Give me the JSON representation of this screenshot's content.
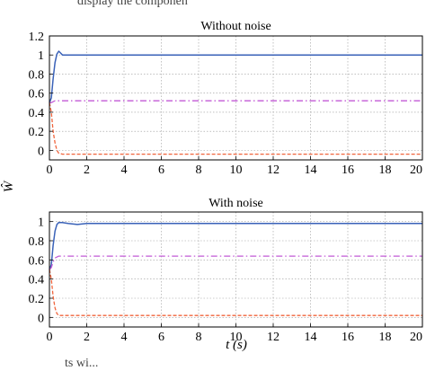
{
  "top_text": "display the componen",
  "bottom_text": "ts wi...",
  "shared_ylabel": "Ŵ",
  "shared_xlabel": "t (s)",
  "colors": {
    "blue": "#3a62b8",
    "magenta": "#c25ad6",
    "orange": "#f0643c",
    "grid": "#9a9a9a"
  },
  "chart_data": [
    {
      "type": "line",
      "title": "Without noise",
      "xlim": [
        0,
        20
      ],
      "ylim": [
        -0.1,
        1.2
      ],
      "x_ticks": [
        0,
        2,
        4,
        6,
        8,
        10,
        12,
        14,
        16,
        18,
        20
      ],
      "y_ticks": [
        0,
        0.2,
        0.4,
        0.6,
        0.8,
        1,
        1.2
      ],
      "y_tick_labels": [
        "0",
        "0.2",
        "0.4",
        "0.6",
        "0.8",
        "1",
        "1.2"
      ],
      "grid": true,
      "series": [
        {
          "style": "solid",
          "color": "blue",
          "x": [
            0,
            0.1,
            0.2,
            0.3,
            0.4,
            0.5,
            0.6,
            0.7,
            0.8,
            1,
            2,
            20
          ],
          "y": [
            0.5,
            0.55,
            0.75,
            0.92,
            1.01,
            1.04,
            1.02,
            1.0,
            1.0,
            1.0,
            1.0,
            1.0
          ]
        },
        {
          "style": "dashdot",
          "color": "magenta",
          "x": [
            0,
            0.1,
            0.2,
            0.3,
            0.5,
            1,
            20
          ],
          "y": [
            0.5,
            0.5,
            0.51,
            0.52,
            0.52,
            0.52,
            0.52
          ]
        },
        {
          "style": "dashed",
          "color": "orange",
          "x": [
            0,
            0.1,
            0.2,
            0.3,
            0.4,
            0.5,
            0.7,
            1,
            20
          ],
          "y": [
            0.5,
            0.4,
            0.2,
            0.08,
            0.0,
            -0.03,
            -0.04,
            -0.04,
            -0.04
          ]
        }
      ]
    },
    {
      "type": "line",
      "title": "With noise",
      "xlim": [
        0,
        20
      ],
      "ylim": [
        -0.1,
        1.1
      ],
      "x_ticks": [
        0,
        2,
        4,
        6,
        8,
        10,
        12,
        14,
        16,
        18,
        20
      ],
      "y_ticks": [
        0,
        0.2,
        0.4,
        0.6,
        0.8,
        1
      ],
      "y_tick_labels": [
        "0",
        "0.2",
        "0.4",
        "0.6",
        "0.8",
        "1"
      ],
      "grid": true,
      "series": [
        {
          "style": "solid",
          "color": "blue",
          "x": [
            0,
            0.1,
            0.2,
            0.3,
            0.4,
            0.5,
            0.7,
            1,
            1.5,
            2,
            2.5,
            20
          ],
          "y": [
            0.5,
            0.55,
            0.75,
            0.9,
            0.97,
            0.99,
            0.99,
            0.98,
            0.97,
            0.98,
            0.98,
            0.98
          ]
        },
        {
          "style": "dashdot",
          "color": "magenta",
          "x": [
            0,
            0.1,
            0.2,
            0.3,
            0.5,
            1,
            20
          ],
          "y": [
            0.5,
            0.52,
            0.58,
            0.62,
            0.64,
            0.64,
            0.64
          ]
        },
        {
          "style": "dashed",
          "color": "orange",
          "x": [
            0,
            0.1,
            0.2,
            0.3,
            0.4,
            0.5,
            0.7,
            1,
            20
          ],
          "y": [
            0.5,
            0.4,
            0.22,
            0.1,
            0.04,
            0.02,
            0.02,
            0.02,
            0.02
          ]
        }
      ]
    }
  ]
}
